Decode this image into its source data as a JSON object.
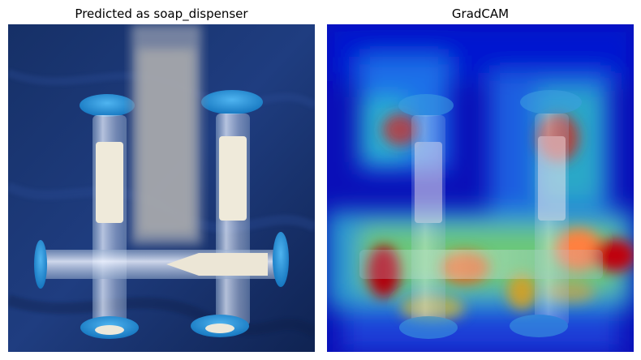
{
  "panels": {
    "left": {
      "title": "Predicted as soap_dispenser"
    },
    "right": {
      "title": "GradCAM"
    }
  },
  "colors": {
    "cloth_dark": "#0d2456",
    "cloth_mid": "#1d3a7a",
    "cap_blue": "#1f8fd8",
    "sand": "#e8e4d2",
    "heat_low": "#0000a8",
    "heat_high": "#c00000"
  }
}
